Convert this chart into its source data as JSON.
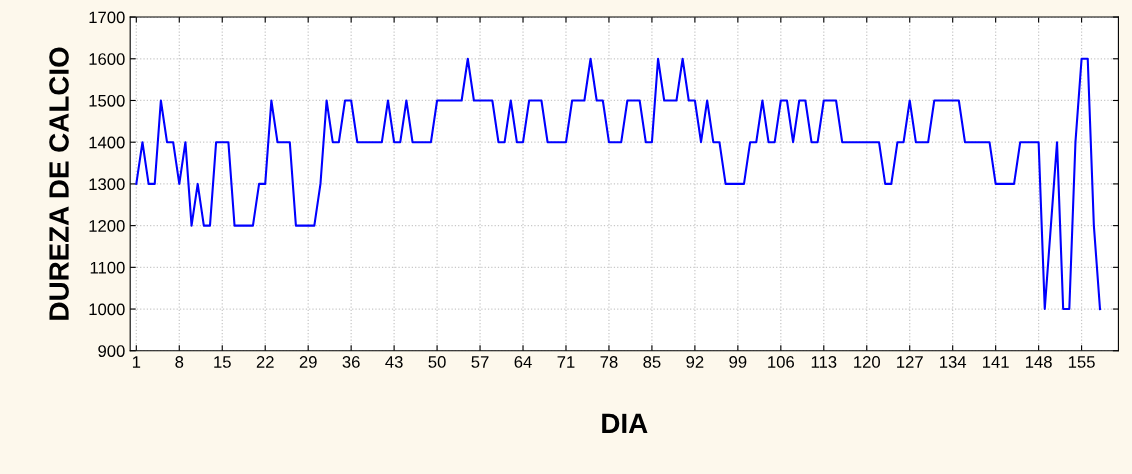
{
  "chart_data": {
    "type": "line",
    "xlabel": "DIA",
    "ylabel": "DUREZA DE CALCIO",
    "x": [
      1,
      2,
      3,
      4,
      5,
      6,
      7,
      8,
      9,
      10,
      11,
      12,
      13,
      14,
      15,
      16,
      17,
      18,
      19,
      20,
      21,
      22,
      23,
      24,
      25,
      26,
      27,
      28,
      29,
      30,
      31,
      32,
      33,
      34,
      35,
      36,
      37,
      38,
      39,
      40,
      41,
      42,
      43,
      44,
      45,
      46,
      47,
      48,
      49,
      50,
      51,
      52,
      53,
      54,
      55,
      56,
      57,
      58,
      59,
      60,
      61,
      62,
      63,
      64,
      65,
      66,
      67,
      68,
      69,
      70,
      71,
      72,
      73,
      74,
      75,
      76,
      77,
      78,
      79,
      80,
      81,
      82,
      83,
      84,
      85,
      86,
      87,
      88,
      89,
      90,
      91,
      92,
      93,
      94,
      95,
      96,
      97,
      98,
      99,
      100,
      101,
      102,
      103,
      104,
      105,
      106,
      107,
      108,
      109,
      110,
      111,
      112,
      113,
      114,
      115,
      116,
      117,
      118,
      119,
      120,
      121,
      122,
      123,
      124,
      125,
      126,
      127,
      128,
      129,
      130,
      131,
      132,
      133,
      134,
      135,
      136,
      137,
      138,
      139,
      140,
      141,
      142,
      143,
      144,
      145,
      146,
      147,
      148,
      149,
      150,
      151,
      152,
      153,
      154,
      155,
      156,
      157,
      158
    ],
    "series": [
      {
        "color": "#0000ff",
        "values": [
          1300,
          1400,
          1300,
          1300,
          1500,
          1400,
          1400,
          1300,
          1400,
          1200,
          1300,
          1200,
          1200,
          1400,
          1400,
          1400,
          1200,
          1200,
          1200,
          1200,
          1300,
          1300,
          1500,
          1400,
          1400,
          1400,
          1200,
          1200,
          1200,
          1200,
          1300,
          1500,
          1400,
          1400,
          1500,
          1500,
          1400,
          1400,
          1400,
          1400,
          1400,
          1500,
          1400,
          1400,
          1500,
          1400,
          1400,
          1400,
          1400,
          1500,
          1500,
          1500,
          1500,
          1500,
          1600,
          1500,
          1500,
          1500,
          1500,
          1400,
          1400,
          1500,
          1400,
          1400,
          1500,
          1500,
          1500,
          1400,
          1400,
          1400,
          1400,
          1500,
          1500,
          1500,
          1600,
          1500,
          1500,
          1400,
          1400,
          1400,
          1500,
          1500,
          1500,
          1400,
          1400,
          1600,
          1500,
          1500,
          1500,
          1600,
          1500,
          1500,
          1400,
          1500,
          1400,
          1400,
          1300,
          1300,
          1300,
          1300,
          1400,
          1400,
          1500,
          1400,
          1400,
          1500,
          1500,
          1400,
          1500,
          1500,
          1400,
          1400,
          1500,
          1500,
          1500,
          1400,
          1400,
          1400,
          1400,
          1400,
          1400,
          1400,
          1300,
          1300,
          1400,
          1400,
          1500,
          1400,
          1400,
          1400,
          1500,
          1500,
          1500,
          1500,
          1500,
          1400,
          1400,
          1400,
          1400,
          1400,
          1300,
          1300,
          1300,
          1300,
          1400,
          1400,
          1400,
          1400,
          1000,
          1200,
          1400,
          1000,
          1000,
          1400,
          1600,
          1600,
          1200,
          1000
        ]
      }
    ],
    "xlim": [
      0,
      161
    ],
    "xticks": [
      1,
      8,
      15,
      22,
      29,
      36,
      43,
      50,
      57,
      64,
      71,
      78,
      85,
      92,
      99,
      106,
      113,
      120,
      127,
      134,
      141,
      148,
      155
    ],
    "ylim": [
      900,
      1700
    ],
    "yticks": [
      900,
      1000,
      1100,
      1200,
      1300,
      1400,
      1500,
      1600,
      1700
    ],
    "grid": true,
    "marker": "none",
    "line_style": "solid"
  }
}
